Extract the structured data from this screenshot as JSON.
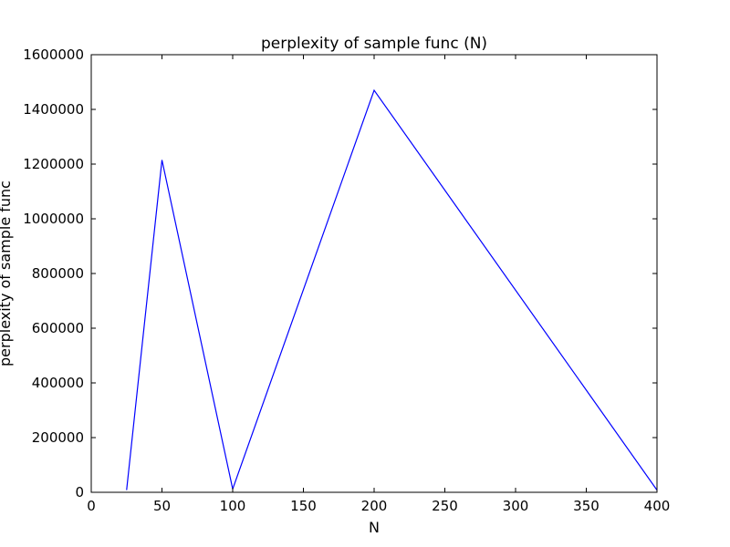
{
  "chart_data": {
    "type": "line",
    "title": "perplexity of sample func (N)",
    "xlabel": "N",
    "ylabel": "perplexity of sample func",
    "xlim": [
      0,
      400
    ],
    "ylim": [
      0,
      1600000
    ],
    "xticks": [
      0,
      50,
      100,
      150,
      200,
      250,
      300,
      350,
      400
    ],
    "yticks": [
      0,
      200000,
      400000,
      600000,
      800000,
      1000000,
      1200000,
      1400000,
      1600000
    ],
    "xtick_labels": [
      "0",
      "50",
      "100",
      "150",
      "200",
      "250",
      "300",
      "350",
      "400"
    ],
    "ytick_labels": [
      "0",
      "200000",
      "400000",
      "600000",
      "800000",
      "1000000",
      "1200000",
      "1400000",
      "1600000"
    ],
    "grid": false,
    "series": [
      {
        "color": "#0000ff",
        "x": [
          25,
          50,
          100,
          200,
          400
        ],
        "y": [
          8000,
          1215000,
          12000,
          1470000,
          8000
        ]
      }
    ]
  }
}
